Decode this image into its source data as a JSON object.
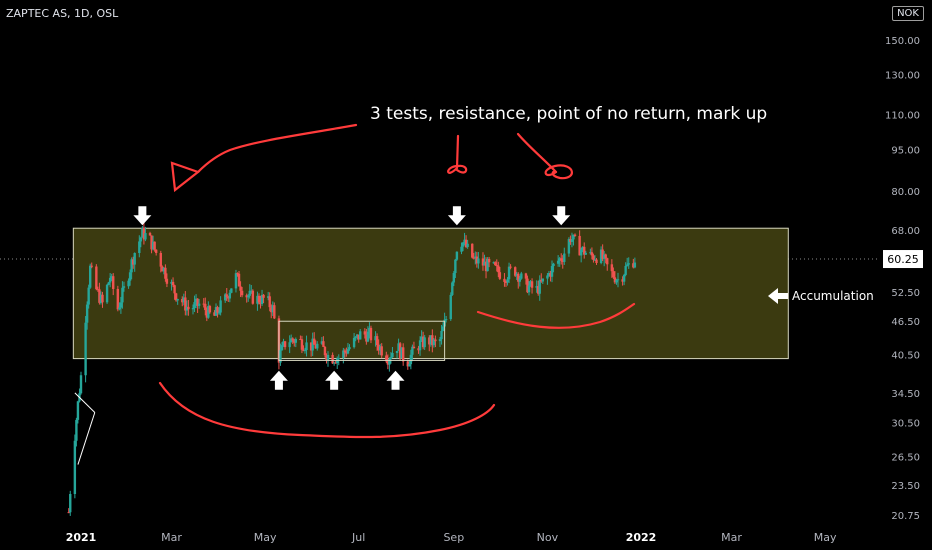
{
  "header": {
    "symbol": "ZAPTEC AS, 1D, OSL",
    "currency": "NOK"
  },
  "annotations": {
    "main_text": "3 tests, resistance, point of no return, mark up",
    "side_label": "Accumulation"
  },
  "colors": {
    "background": "#000000",
    "up": "#26a69a",
    "down": "#ef5350",
    "accumulation_box": "#3b3a10",
    "box_border": "#d8d8c0",
    "marker": "#ff3b3b",
    "price_tag": "#ffffff"
  },
  "chart_data": {
    "type": "candlestick",
    "y_scale": "log",
    "ylim": [
      19.8,
      175
    ],
    "y_ticks": [
      "150.00",
      "130.00",
      "110.00",
      "95.00",
      "80.00",
      "68.00",
      "60.25",
      "52.50",
      "46.50",
      "40.50",
      "34.50",
      "30.50",
      "26.50",
      "23.50",
      "20.75"
    ],
    "x_ticks": [
      "2021",
      "Mar",
      "May",
      "Jul",
      "Sep",
      "Nov",
      "2022",
      "Mar",
      "May"
    ],
    "last_price": "60.25",
    "price_path": [
      [
        "2020-12-24",
        21
      ],
      [
        "2020-12-27",
        27
      ],
      [
        "2021-01-01",
        37
      ],
      [
        "2021-01-03",
        44
      ],
      [
        "2021-01-07",
        58
      ],
      [
        "2021-01-11",
        53
      ],
      [
        "2021-01-15",
        50
      ],
      [
        "2021-01-20",
        56
      ],
      [
        "2021-01-25",
        49
      ],
      [
        "2021-01-30",
        54
      ],
      [
        "2021-02-05",
        62
      ],
      [
        "2021-02-10",
        67
      ],
      [
        "2021-02-14",
        66
      ],
      [
        "2021-02-20",
        61
      ],
      [
        "2021-02-26",
        56
      ],
      [
        "2021-03-04",
        52
      ],
      [
        "2021-03-12",
        49
      ],
      [
        "2021-03-20",
        50
      ],
      [
        "2021-03-28",
        47
      ],
      [
        "2021-04-05",
        51
      ],
      [
        "2021-04-12",
        56
      ],
      [
        "2021-04-18",
        52
      ],
      [
        "2021-04-25",
        51
      ],
      [
        "2021-05-01",
        51
      ],
      [
        "2021-05-06",
        49
      ],
      [
        "2021-05-10",
        40
      ],
      [
        "2021-05-15",
        43
      ],
      [
        "2021-05-22",
        43
      ],
      [
        "2021-05-29",
        42
      ],
      [
        "2021-06-06",
        42
      ],
      [
        "2021-06-12",
        40
      ],
      [
        "2021-06-18",
        40
      ],
      [
        "2021-06-26",
        42
      ],
      [
        "2021-07-02",
        44
      ],
      [
        "2021-07-08",
        44
      ],
      [
        "2021-07-14",
        42
      ],
      [
        "2021-07-20",
        40
      ],
      [
        "2021-07-26",
        42
      ],
      [
        "2021-08-01",
        39
      ],
      [
        "2021-08-08",
        42
      ],
      [
        "2021-08-15",
        43
      ],
      [
        "2021-08-22",
        42
      ],
      [
        "2021-08-28",
        48
      ],
      [
        "2021-09-01",
        58
      ],
      [
        "2021-09-04",
        66
      ],
      [
        "2021-09-08",
        64
      ],
      [
        "2021-09-14",
        60
      ],
      [
        "2021-09-20",
        59
      ],
      [
        "2021-09-27",
        58
      ],
      [
        "2021-10-04",
        56
      ],
      [
        "2021-10-10",
        58
      ],
      [
        "2021-10-18",
        54
      ],
      [
        "2021-10-25",
        53
      ],
      [
        "2021-11-01",
        56
      ],
      [
        "2021-11-06",
        59
      ],
      [
        "2021-11-11",
        61
      ],
      [
        "2021-11-16",
        66
      ],
      [
        "2021-11-22",
        63
      ],
      [
        "2021-11-29",
        61
      ],
      [
        "2021-12-06",
        61
      ],
      [
        "2021-12-12",
        57
      ],
      [
        "2021-12-18",
        55
      ],
      [
        "2021-12-22",
        58
      ],
      [
        "2021-12-28",
        60.25
      ]
    ],
    "accumulation_range": {
      "from": "2020-12-27",
      "to": "2022-04-07",
      "low": 39.8,
      "high": 68.5
    },
    "inner_range": {
      "from": "2021-05-10",
      "to": "2021-08-26",
      "low": 39.5,
      "high": 46.5
    },
    "triangle": {
      "points": [
        [
          "2020-12-28",
          34.5
        ],
        [
          "2021-01-10",
          31.8
        ],
        [
          "2020-12-30",
          25.6
        ],
        [
          "2021-01-10",
          31.8
        ]
      ]
    },
    "down_arrows_at": [
      [
        "2021-02-10",
        72
      ],
      [
        "2021-09-03",
        72
      ],
      [
        "2021-11-10",
        72
      ]
    ],
    "up_arrows_at": [
      [
        "2021-05-10",
        36.3
      ],
      [
        "2021-06-15",
        36.3
      ],
      [
        "2021-07-25",
        36.3
      ]
    ]
  }
}
